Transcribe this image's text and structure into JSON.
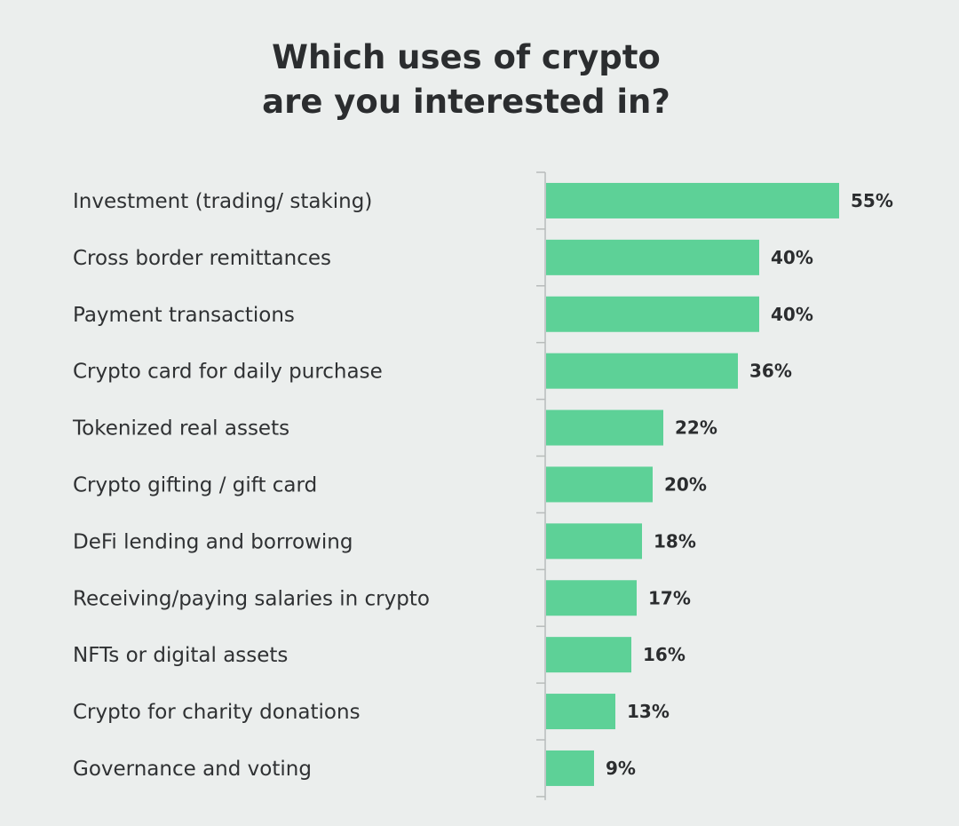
{
  "title": {
    "line1": "Which uses of crypto",
    "line2": "are you interested in?"
  },
  "colors": {
    "background": "#ebeeed",
    "bar": "#5dd197",
    "axis": "#b8bcbb",
    "text": "#2b2d2f"
  },
  "chart_data": {
    "type": "bar",
    "orientation": "horizontal",
    "title": "Which uses of crypto are you interested in?",
    "xlabel": "",
    "ylabel": "",
    "unit": "%",
    "xlim": [
      0,
      55
    ],
    "grid": false,
    "legend": "none",
    "categories": [
      "Investment (trading/ staking)",
      "Cross border remittances",
      "Payment transactions",
      "Crypto card for daily purchase",
      "Tokenized real assets",
      "Crypto gifting / gift card",
      "DeFi lending and borrowing",
      "Receiving/paying salaries in crypto",
      "NFTs or digital assets",
      "Crypto for charity donations",
      "Governance and voting"
    ],
    "values": [
      55,
      40,
      40,
      36,
      22,
      20,
      18,
      17,
      16,
      13,
      9
    ],
    "value_labels": [
      "55%",
      "40%",
      "40%",
      "36%",
      "22%",
      "20%",
      "18%",
      "17%",
      "16%",
      "13%",
      "9%"
    ]
  }
}
